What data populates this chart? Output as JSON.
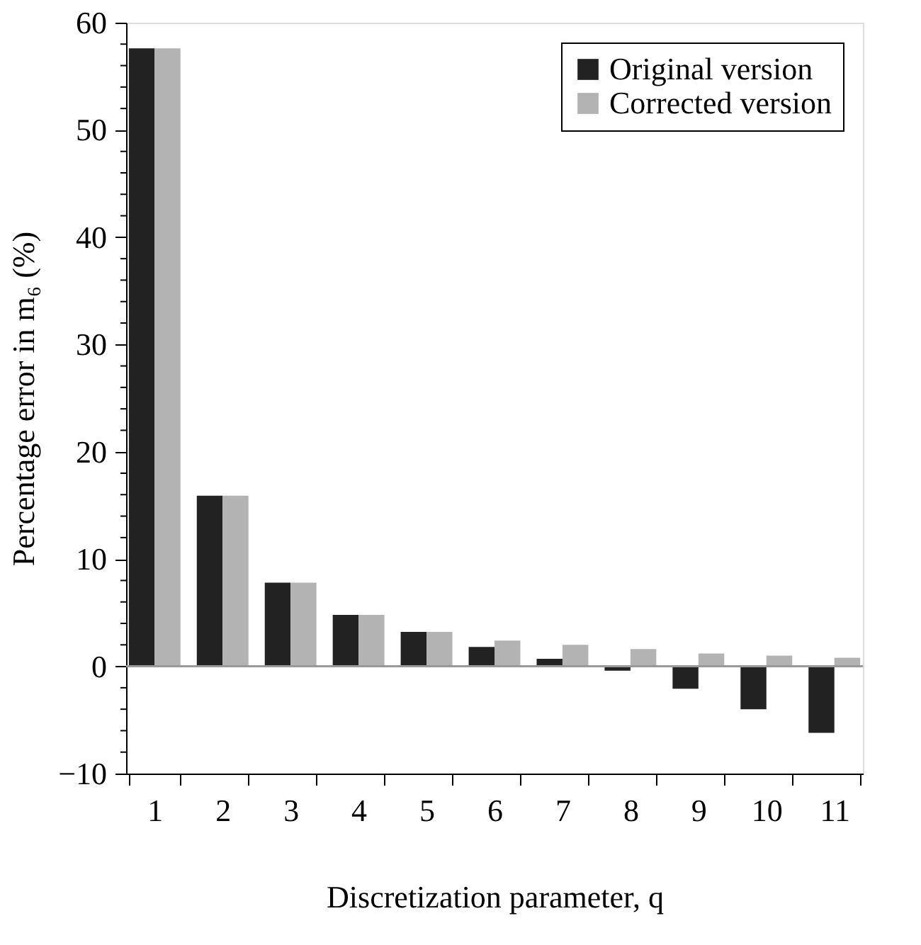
{
  "chart_data": {
    "type": "bar",
    "xlabel": "Discretization parameter, q",
    "ylabel": "Percentage error in m₆ (%)",
    "categories": [
      "1",
      "2",
      "3",
      "4",
      "5",
      "6",
      "7",
      "8",
      "9",
      "10",
      "11"
    ],
    "series": [
      {
        "name": "Original version",
        "color": "#222222",
        "values": [
          57.6,
          15.9,
          7.8,
          4.8,
          3.2,
          1.8,
          0.7,
          -0.4,
          -2.1,
          -4.0,
          -6.2
        ]
      },
      {
        "name": "Corrected version",
        "color": "#b3b3b3",
        "values": [
          57.6,
          15.9,
          7.8,
          4.8,
          3.2,
          2.4,
          2.0,
          1.6,
          1.2,
          1.0,
          0.8
        ]
      }
    ],
    "ylim": [
      -10,
      60
    ],
    "yticks": [
      -10,
      0,
      10,
      20,
      30,
      40,
      50,
      60
    ],
    "ref_lines": [
      {
        "axis": "y",
        "value": 0,
        "color": "#999999"
      }
    ],
    "grid": false,
    "legend": "top right"
  }
}
